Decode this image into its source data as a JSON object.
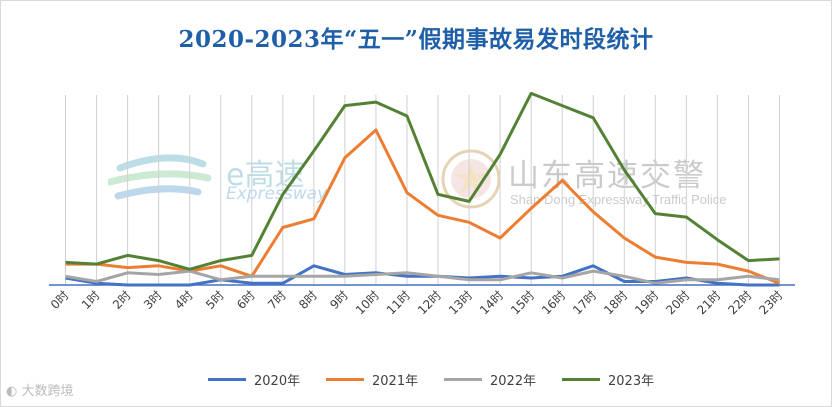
{
  "title": "2020-2023年“五一”假期事故易发时段统计",
  "watermark_left": {
    "title": "e高速",
    "subtitle": "Expressway"
  },
  "watermark_right": {
    "title": "山东高速交警",
    "subtitle": "Shan Dong Expressway Traffic Police"
  },
  "source": "大数跨境",
  "colors": {
    "2020年": "#4472c4",
    "2021年": "#ed7d31",
    "2022年": "#a5a5a5",
    "2023年": "#548235",
    "axis": "#4472c4",
    "grid": "#d0d0d0"
  },
  "chart_data": {
    "type": "line",
    "title": "2020-2023年“五一”假期事故易发时段统计",
    "xlabel": "",
    "ylabel": "",
    "ylim": [
      0,
      100
    ],
    "grid": "vertical lines",
    "legend_position": "bottom",
    "categories": [
      "0时",
      "1时",
      "2时",
      "3时",
      "4时",
      "5时",
      "6时",
      "7时",
      "8时",
      "9时",
      "10时",
      "11时",
      "12时",
      "13时",
      "14时",
      "15时",
      "16时",
      "17时",
      "18时",
      "19时",
      "20时",
      "21时",
      "22时",
      "23时"
    ],
    "series": [
      {
        "name": "2020年",
        "values": [
          4,
          1,
          0,
          0,
          0,
          3,
          1,
          1,
          11,
          6,
          7,
          5,
          5,
          4,
          5,
          4,
          5,
          11,
          2,
          2,
          4,
          1,
          0,
          0
        ]
      },
      {
        "name": "2021年",
        "values": [
          12,
          12,
          10,
          11,
          8,
          11,
          5,
          33,
          38,
          73,
          89,
          53,
          40,
          36,
          27,
          44,
          60,
          42,
          27,
          16,
          13,
          12,
          8,
          1
        ]
      },
      {
        "name": "2022年",
        "values": [
          5,
          2,
          7,
          6,
          8,
          3,
          5,
          5,
          5,
          5,
          6,
          7,
          5,
          3,
          3,
          7,
          4,
          8,
          5,
          1,
          3,
          3,
          5,
          3
        ]
      },
      {
        "name": "2023年",
        "values": [
          13,
          12,
          17,
          14,
          9,
          14,
          17,
          52,
          77,
          103,
          105,
          97,
          52,
          48,
          75,
          110,
          103,
          96,
          66,
          41,
          39,
          26,
          14,
          15
        ]
      }
    ]
  }
}
